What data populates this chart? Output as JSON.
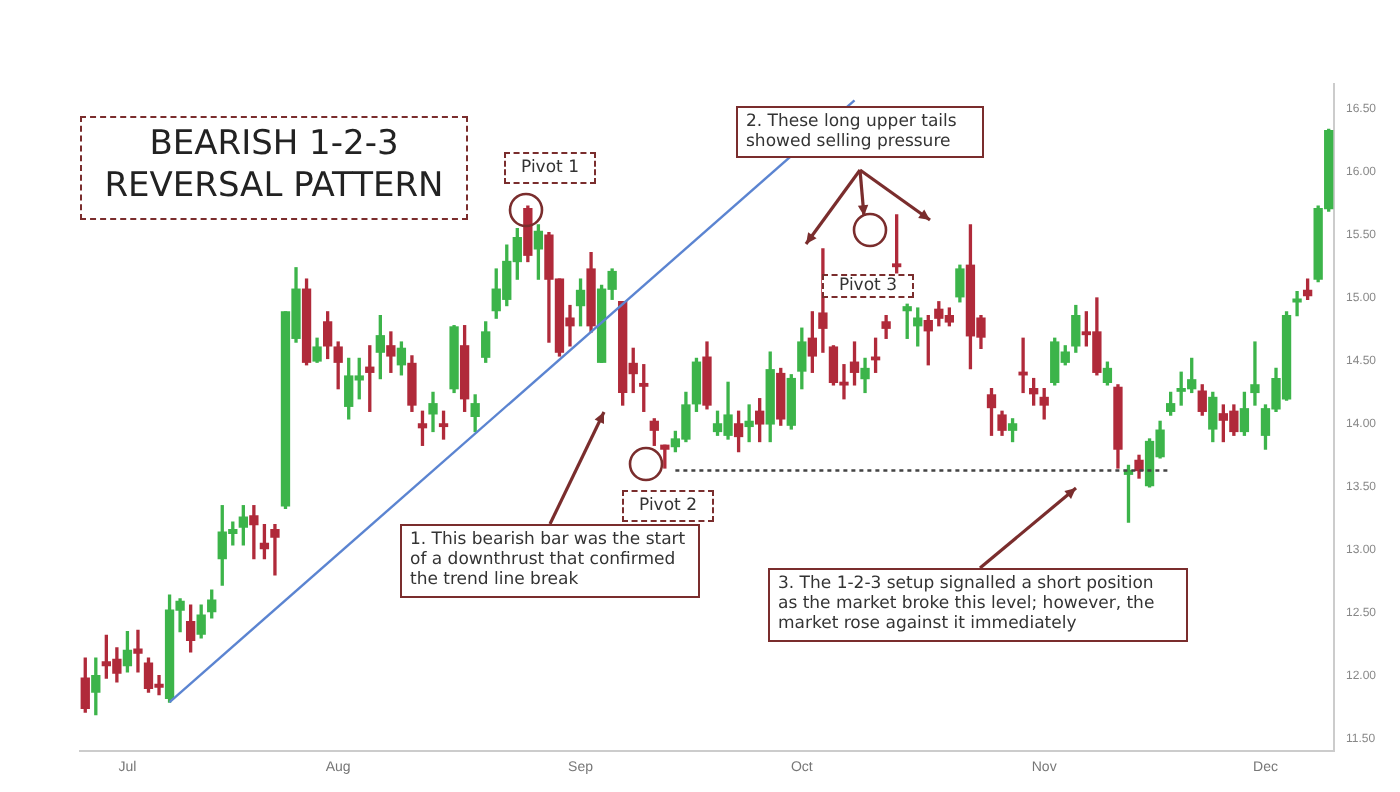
{
  "chart_data": {
    "type": "candlestick",
    "title": "BEARISH 1-2-3 REVERSAL PATTERN",
    "categories": [
      null,
      null,
      null,
      null,
      "Jul",
      null,
      null,
      null,
      null,
      null,
      null,
      null,
      null,
      null,
      null,
      null,
      null,
      null,
      null,
      null,
      null,
      null,
      null,
      null,
      "Aug",
      null,
      null,
      null,
      null,
      null,
      null,
      null,
      null,
      null,
      null,
      null,
      null,
      null,
      null,
      null,
      null,
      null,
      null,
      null,
      null,
      null,
      null,
      "Sep",
      null,
      null,
      null,
      null,
      null,
      null,
      null,
      null,
      null,
      null,
      null,
      null,
      null,
      null,
      null,
      null,
      null,
      null,
      null,
      null,
      "Oct",
      null,
      null,
      null,
      null,
      null,
      null,
      null,
      null,
      null,
      null,
      null,
      null,
      null,
      null,
      null,
      null,
      null,
      null,
      null,
      null,
      null,
      null,
      "Nov",
      null,
      null,
      null,
      null,
      null,
      null,
      null,
      null,
      null,
      null,
      null,
      null,
      null,
      null,
      null,
      null,
      null,
      null,
      null,
      null,
      "Dec",
      null,
      null,
      null,
      null,
      null,
      null
    ],
    "ohlc": [
      [
        11.98,
        12.14,
        11.71,
        11.74
      ],
      [
        11.87,
        12.14,
        11.69,
        12.0
      ],
      [
        12.11,
        12.32,
        11.98,
        12.08
      ],
      [
        12.13,
        12.22,
        11.95,
        12.02
      ],
      [
        12.08,
        12.35,
        12.03,
        12.2
      ],
      [
        12.21,
        12.36,
        12.03,
        12.18
      ],
      [
        12.1,
        12.14,
        11.87,
        11.9
      ],
      [
        11.93,
        12.0,
        11.85,
        11.91
      ],
      [
        11.82,
        12.64,
        11.79,
        12.52
      ],
      [
        12.52,
        12.61,
        12.35,
        12.59
      ],
      [
        12.43,
        12.56,
        12.19,
        12.28
      ],
      [
        12.33,
        12.56,
        12.3,
        12.48
      ],
      [
        12.51,
        12.68,
        12.46,
        12.6
      ],
      [
        12.93,
        13.35,
        12.72,
        13.14
      ],
      [
        13.13,
        13.22,
        13.04,
        13.16
      ],
      [
        13.18,
        13.35,
        13.04,
        13.26
      ],
      [
        13.27,
        13.35,
        12.93,
        13.2
      ],
      [
        13.05,
        13.2,
        12.93,
        13.01
      ],
      [
        13.16,
        13.2,
        12.8,
        13.1
      ],
      [
        13.35,
        14.89,
        13.33,
        14.89
      ],
      [
        14.68,
        15.24,
        14.65,
        15.07
      ],
      [
        15.07,
        15.15,
        14.47,
        14.49
      ],
      [
        14.5,
        14.68,
        14.49,
        14.61
      ],
      [
        14.81,
        14.89,
        14.52,
        14.62
      ],
      [
        14.61,
        14.65,
        14.28,
        14.49
      ],
      [
        14.14,
        14.52,
        14.04,
        14.38
      ],
      [
        14.35,
        14.52,
        14.2,
        14.38
      ],
      [
        14.45,
        14.62,
        14.1,
        14.41
      ],
      [
        14.57,
        14.86,
        14.36,
        14.7
      ],
      [
        14.62,
        14.73,
        14.41,
        14.54
      ],
      [
        14.47,
        14.65,
        14.39,
        14.6
      ],
      [
        14.48,
        14.54,
        14.1,
        14.15
      ],
      [
        14.0,
        14.1,
        13.83,
        13.97
      ],
      [
        14.08,
        14.25,
        13.94,
        14.16
      ],
      [
        14.0,
        14.1,
        13.88,
        13.98
      ],
      [
        14.28,
        14.78,
        14.25,
        14.77
      ],
      [
        14.62,
        14.78,
        14.1,
        14.2
      ],
      [
        14.06,
        14.23,
        13.94,
        14.16
      ],
      [
        14.53,
        14.81,
        14.49,
        14.73
      ],
      [
        14.9,
        15.23,
        14.84,
        15.07
      ],
      [
        14.99,
        15.42,
        14.94,
        15.29
      ],
      [
        15.29,
        15.55,
        15.15,
        15.48
      ],
      [
        15.71,
        15.73,
        15.29,
        15.34
      ],
      [
        15.39,
        15.58,
        15.15,
        15.53
      ],
      [
        15.5,
        15.52,
        14.65,
        15.15
      ],
      [
        15.15,
        15.15,
        14.54,
        14.57
      ],
      [
        14.84,
        14.94,
        14.62,
        14.78
      ],
      [
        14.94,
        15.15,
        14.78,
        15.06
      ],
      [
        15.23,
        15.36,
        14.73,
        14.78
      ],
      [
        14.49,
        15.1,
        14.49,
        15.07
      ],
      [
        15.07,
        15.23,
        14.99,
        15.21
      ],
      [
        14.97,
        14.97,
        14.15,
        14.25
      ],
      [
        14.48,
        14.6,
        14.25,
        14.4
      ],
      [
        14.32,
        14.47,
        14.1,
        14.3
      ],
      [
        14.02,
        14.04,
        13.83,
        13.95
      ],
      [
        13.83,
        13.83,
        13.65,
        13.8
      ],
      [
        13.82,
        13.94,
        13.78,
        13.88
      ],
      [
        13.88,
        14.25,
        13.86,
        14.15
      ],
      [
        14.16,
        14.52,
        14.1,
        14.49
      ],
      [
        14.53,
        14.65,
        14.12,
        14.15
      ],
      [
        13.94,
        14.1,
        13.91,
        14.0
      ],
      [
        13.91,
        14.33,
        13.88,
        14.07
      ],
      [
        14.0,
        14.1,
        13.78,
        13.9
      ],
      [
        13.98,
        14.15,
        13.86,
        14.02
      ],
      [
        14.1,
        14.2,
        13.86,
        14.0
      ],
      [
        14.0,
        14.57,
        13.86,
        14.43
      ],
      [
        14.4,
        14.44,
        13.99,
        14.04
      ],
      [
        13.99,
        14.39,
        13.96,
        14.36
      ],
      [
        14.42,
        14.76,
        14.28,
        14.65
      ],
      [
        14.68,
        14.89,
        14.41,
        14.54
      ],
      [
        14.88,
        15.39,
        14.57,
        14.76
      ],
      [
        14.61,
        14.62,
        14.31,
        14.33
      ],
      [
        14.33,
        14.47,
        14.2,
        14.31
      ],
      [
        14.49,
        14.65,
        14.31,
        14.41
      ],
      [
        14.36,
        14.52,
        14.25,
        14.44
      ],
      [
        14.53,
        14.68,
        14.41,
        14.51
      ],
      [
        14.81,
        14.86,
        14.68,
        14.76
      ],
      [
        15.27,
        15.66,
        15.2,
        15.25
      ],
      [
        14.9,
        14.95,
        14.68,
        14.93
      ],
      [
        14.78,
        14.92,
        14.62,
        14.84
      ],
      [
        14.82,
        14.86,
        14.47,
        14.74
      ],
      [
        14.91,
        14.97,
        14.78,
        14.84
      ],
      [
        14.86,
        14.92,
        14.78,
        14.81
      ],
      [
        15.01,
        15.26,
        14.97,
        15.23
      ],
      [
        15.26,
        15.58,
        14.44,
        14.7
      ],
      [
        14.84,
        14.86,
        14.6,
        14.69
      ],
      [
        14.23,
        14.28,
        13.91,
        14.13
      ],
      [
        14.07,
        14.1,
        13.91,
        13.95
      ],
      [
        13.95,
        14.04,
        13.86,
        14.0
      ],
      [
        14.41,
        14.68,
        14.25,
        14.39
      ],
      [
        14.28,
        14.36,
        14.15,
        14.24
      ],
      [
        14.21,
        14.28,
        14.04,
        14.15
      ],
      [
        14.33,
        14.68,
        14.31,
        14.65
      ],
      [
        14.49,
        14.62,
        14.47,
        14.57
      ],
      [
        14.62,
        14.94,
        14.57,
        14.86
      ],
      [
        14.73,
        14.89,
        14.62,
        14.71
      ],
      [
        14.73,
        15.0,
        14.39,
        14.41
      ],
      [
        14.33,
        14.49,
        14.31,
        14.44
      ],
      [
        14.29,
        14.31,
        13.65,
        13.8
      ],
      [
        13.6,
        13.67,
        13.22,
        13.63
      ],
      [
        13.71,
        13.75,
        13.57,
        13.63
      ],
      [
        13.51,
        13.88,
        13.5,
        13.86
      ],
      [
        13.74,
        14.02,
        13.73,
        13.95
      ],
      [
        14.1,
        14.25,
        14.07,
        14.16
      ],
      [
        14.26,
        14.41,
        14.15,
        14.28
      ],
      [
        14.28,
        14.52,
        14.25,
        14.35
      ],
      [
        14.26,
        14.31,
        14.07,
        14.1
      ],
      [
        13.96,
        14.25,
        13.86,
        14.21
      ],
      [
        14.08,
        14.15,
        13.86,
        14.03
      ],
      [
        14.1,
        14.15,
        13.91,
        13.94
      ],
      [
        13.94,
        14.25,
        13.91,
        14.12
      ],
      [
        14.25,
        14.65,
        14.15,
        14.31
      ],
      [
        13.91,
        14.15,
        13.8,
        14.12
      ],
      [
        14.12,
        14.44,
        14.1,
        14.36
      ],
      [
        14.2,
        14.89,
        14.19,
        14.86
      ],
      [
        14.97,
        15.05,
        14.86,
        14.99
      ],
      [
        15.06,
        15.15,
        14.99,
        15.02
      ],
      [
        15.15,
        15.73,
        15.13,
        15.71
      ],
      [
        15.71,
        16.34,
        15.69,
        16.33
      ]
    ],
    "colors": [
      "#b02a3a",
      "#3cb44a",
      "#b02a3a",
      "#b02a3a",
      "#3cb44a",
      "#b02a3a",
      "#b02a3a",
      "#b02a3a",
      "#3cb44a",
      "#3cb44a",
      "#b02a3a",
      "#3cb44a",
      "#3cb44a",
      "#3cb44a",
      "#3cb44a",
      "#3cb44a",
      "#b02a3a",
      "#b02a3a",
      "#b02a3a",
      "#3cb44a",
      "#3cb44a",
      "#b02a3a",
      "#3cb44a",
      "#b02a3a",
      "#b02a3a",
      "#3cb44a",
      "#3cb44a",
      "#b02a3a",
      "#3cb44a",
      "#b02a3a",
      "#3cb44a",
      "#b02a3a",
      "#b02a3a",
      "#3cb44a",
      "#b02a3a",
      "#3cb44a",
      "#b02a3a",
      "#3cb44a",
      "#3cb44a",
      "#3cb44a",
      "#3cb44a",
      "#3cb44a",
      "#b02a3a",
      "#3cb44a",
      "#b02a3a",
      "#b02a3a",
      "#b02a3a",
      "#3cb44a",
      "#b02a3a",
      "#3cb44a",
      "#3cb44a",
      "#b02a3a",
      "#b02a3a",
      "#b02a3a",
      "#b02a3a",
      "#b02a3a",
      "#3cb44a",
      "#3cb44a",
      "#3cb44a",
      "#b02a3a",
      "#3cb44a",
      "#3cb44a",
      "#b02a3a",
      "#3cb44a",
      "#b02a3a",
      "#3cb44a",
      "#b02a3a",
      "#3cb44a",
      "#3cb44a",
      "#b02a3a",
      "#b02a3a",
      "#b02a3a",
      "#b02a3a",
      "#b02a3a",
      "#3cb44a",
      "#b02a3a",
      "#b02a3a",
      "#b02a3a",
      "#3cb44a",
      "#3cb44a",
      "#b02a3a",
      "#b02a3a",
      "#b02a3a",
      "#3cb44a",
      "#b02a3a",
      "#b02a3a",
      "#b02a3a",
      "#b02a3a",
      "#3cb44a",
      "#b02a3a",
      "#b02a3a",
      "#b02a3a",
      "#3cb44a",
      "#3cb44a",
      "#3cb44a",
      "#b02a3a",
      "#b02a3a",
      "#3cb44a",
      "#b02a3a",
      "#3cb44a",
      "#b02a3a",
      "#3cb44a",
      "#3cb44a",
      "#3cb44a",
      "#3cb44a",
      "#3cb44a",
      "#b02a3a",
      "#3cb44a",
      "#b02a3a",
      "#b02a3a",
      "#3cb44a",
      "#3cb44a",
      "#3cb44a",
      "#3cb44a",
      "#3cb44a",
      "#3cb44a",
      "#b02a3a",
      "#3cb44a",
      "#3cb44a"
    ],
    "series": [
      {
        "type": "line",
        "values": [
          null,
          null,
          null,
          null,
          null,
          null,
          null,
          null,
          11.79,
          null,
          null,
          null,
          null,
          null,
          null,
          null,
          null,
          null,
          null,
          null,
          null,
          null,
          null,
          null,
          null,
          null,
          null,
          null,
          null,
          null,
          null,
          null,
          null,
          null,
          null,
          null,
          null,
          null,
          null,
          null,
          null,
          null,
          null,
          null,
          null,
          null,
          null,
          null,
          null,
          null,
          null,
          null,
          null,
          null,
          null,
          null,
          null,
          null,
          null,
          null,
          null,
          null,
          null,
          null,
          null,
          null,
          null,
          null,
          null,
          null,
          null,
          null,
          null,
          16.57,
          null,
          null,
          null,
          null,
          null,
          null,
          null,
          null,
          null,
          null,
          null,
          null,
          null,
          null,
          null,
          null,
          null,
          null,
          null,
          null,
          null,
          null,
          null,
          null,
          null,
          null,
          null,
          null,
          null,
          null,
          null,
          null,
          null,
          null,
          null,
          null,
          null,
          null,
          null,
          null,
          null,
          null,
          null,
          null,
          null
        ],
        "color": "#5b84d1",
        "marker": "none",
        "line_style": "solid"
      },
      {
        "type": "line",
        "values": [
          null,
          null,
          null,
          null,
          null,
          null,
          null,
          null,
          null,
          null,
          null,
          null,
          null,
          null,
          null,
          null,
          null,
          null,
          null,
          null,
          null,
          null,
          null,
          null,
          null,
          null,
          null,
          null,
          null,
          null,
          null,
          null,
          null,
          null,
          null,
          null,
          null,
          null,
          null,
          null,
          null,
          null,
          null,
          null,
          null,
          null,
          null,
          null,
          null,
          null,
          null,
          null,
          null,
          null,
          null,
          null,
          13.63,
          null,
          null,
          null,
          null,
          null,
          null,
          null,
          null,
          null,
          null,
          null,
          null,
          null,
          null,
          null,
          null,
          null,
          null,
          null,
          null,
          null,
          null,
          null,
          null,
          null,
          null,
          null,
          null,
          null,
          null,
          null,
          null,
          null,
          null,
          null,
          null,
          null,
          null,
          null,
          null,
          null,
          null,
          null,
          null,
          null,
          null,
          13.63,
          null,
          null,
          null,
          null,
          null,
          null,
          null,
          null,
          null,
          null,
          null,
          null,
          null,
          null,
          null
        ],
        "color": "#444444",
        "marker": "none",
        "line_style": "dotted"
      }
    ],
    "ylim": [
      11.4,
      16.7
    ],
    "yticks": [
      {
        "value": 11.5,
        "label": "11.50"
      },
      {
        "value": 12,
        "label": "12.00"
      },
      {
        "value": 12.5,
        "label": "12.50"
      },
      {
        "value": 13,
        "label": "13.00"
      },
      {
        "value": 13.5,
        "label": "13.50"
      },
      {
        "value": 14,
        "label": "14.00"
      },
      {
        "value": 14.5,
        "label": "14.50"
      },
      {
        "value": 15,
        "label": "15.00"
      },
      {
        "value": 15.5,
        "label": "15.50"
      },
      {
        "value": 16,
        "label": "16.00"
      },
      {
        "value": 16.5,
        "label": "16.50"
      }
    ],
    "grid": false,
    "legend": false,
    "annotations": [
      "Pivot 1",
      "Pivot 2",
      "Pivot 3",
      "2. These long upper tails showed selling pressure",
      "1. This bearish bar was the start of a downthrust that confirmed the trend line break",
      "3. The 1-2-3 setup signalled a short position as the market broke this level; however, the market rose against it immediately"
    ]
  }
}
